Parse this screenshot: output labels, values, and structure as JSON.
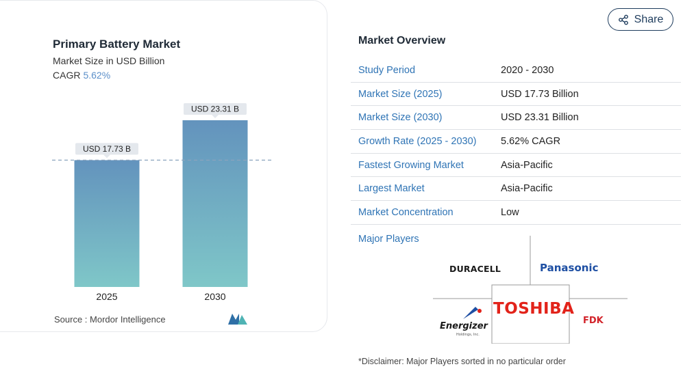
{
  "card": {
    "title": "Primary Battery Market",
    "subtitle": "Market Size in USD Billion",
    "cagr_label": "CAGR",
    "cagr_value": "5.62%",
    "source": "Source :  Mordor Intelligence"
  },
  "chart_data": {
    "type": "bar",
    "categories": [
      "2025",
      "2030"
    ],
    "values": [
      17.73,
      23.31
    ],
    "data_labels": [
      "USD 17.73 B",
      "USD 23.31 B"
    ],
    "reference_line": 17.73,
    "colors": {
      "bar_top": "#6393bd",
      "bar_bottom": "#7fc7c8",
      "label_bg": "#e4e8ed",
      "ref_line": "#8aa3bd"
    }
  },
  "share": {
    "label": "Share"
  },
  "overview": {
    "title": "Market Overview",
    "rows": [
      {
        "label": "Study Period",
        "value": "2020 - 2030"
      },
      {
        "label": "Market Size (2025)",
        "value": "USD 17.73 Billion"
      },
      {
        "label": "Market Size (2030)",
        "value": "USD 23.31 Billion"
      },
      {
        "label": "Growth Rate (2025 - 2030)",
        "value": "5.62% CAGR"
      },
      {
        "label": "Fastest Growing Market",
        "value": "Asia-Pacific"
      },
      {
        "label": "Largest Market",
        "value": "Asia-Pacific"
      },
      {
        "label": "Market Concentration",
        "value": "Low"
      }
    ],
    "players_label": "Major Players",
    "players": [
      "DURACELL",
      "Panasonic",
      "TOSHIBA",
      "Energizer",
      "FDK"
    ],
    "players_sub": "Holdings, Inc.",
    "disclaimer": "*Disclaimer: Major Players sorted in no particular order"
  }
}
